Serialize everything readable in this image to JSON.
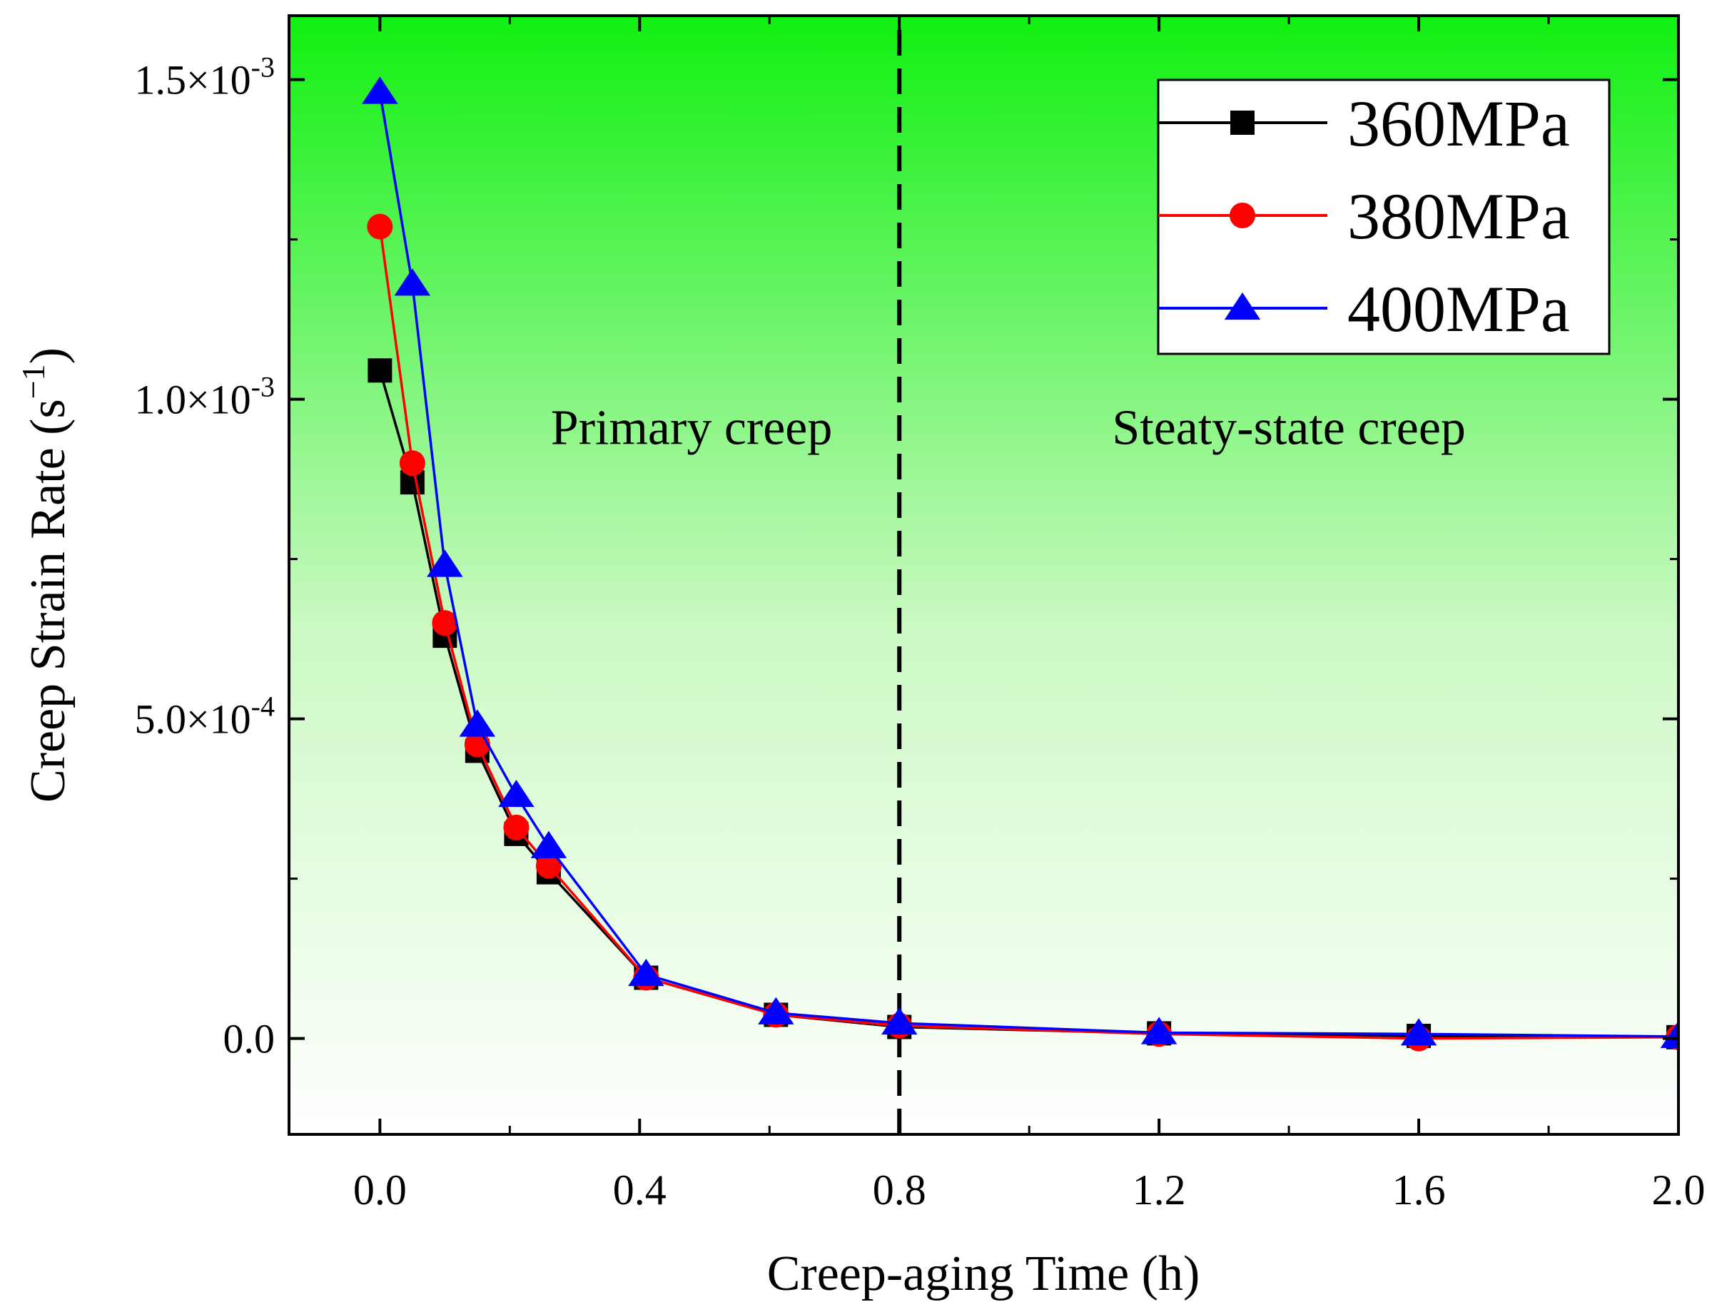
{
  "chart_data": {
    "type": "line",
    "title": "",
    "xlabel": "Creep-aging Time (h)",
    "ylabel": "Creep Strain Rate (s",
    "ylabel_exp": "−1",
    "ylabel_close": ")",
    "xlim": [
      -0.14,
      2.0
    ],
    "ylim": [
      -0.00015,
      0.0016
    ],
    "grid": false,
    "legend_position": "top-right",
    "background_gradient": [
      "#11f011",
      "#ffffff"
    ],
    "x_ticks": [
      {
        "value": 0.0,
        "label": "0.0"
      },
      {
        "value": 0.4,
        "label": "0.4"
      },
      {
        "value": 0.8,
        "label": "0.8"
      },
      {
        "value": 1.2,
        "label": "1.2"
      },
      {
        "value": 1.6,
        "label": "1.6"
      },
      {
        "value": 2.0,
        "label": "2.0"
      }
    ],
    "x_minor_ticks": [
      0.2,
      0.6,
      1.0,
      1.4,
      1.8
    ],
    "y_ticks": [
      {
        "value": 0.0,
        "mant": "0.0",
        "exp": ""
      },
      {
        "value": 0.0005,
        "mant": "5.0×10",
        "exp": "-4"
      },
      {
        "value": 0.001,
        "mant": "1.0×10",
        "exp": "-3"
      },
      {
        "value": 0.0015,
        "mant": "1.5×10",
        "exp": "-3"
      }
    ],
    "y_minor_ticks": [
      0.00025,
      0.00075,
      0.00125
    ],
    "x": [
      0.0,
      0.05,
      0.1,
      0.15,
      0.21,
      0.26,
      0.41,
      0.61,
      0.8,
      1.2,
      1.6,
      2.0
    ],
    "series": [
      {
        "name": "360MPa",
        "color": "#000000",
        "marker": "square",
        "values": [
          0.001045,
          0.00087,
          0.00063,
          0.00045,
          0.00032,
          0.00026,
          9.5e-05,
          3.7e-05,
          1.8e-05,
          8e-06,
          4e-06,
          2e-06
        ]
      },
      {
        "name": "380MPa",
        "color": "#ff0000",
        "marker": "circle",
        "values": [
          0.00127,
          0.0009,
          0.00065,
          0.00046,
          0.00033,
          0.00027,
          9.5e-05,
          3.7e-05,
          2e-05,
          7e-06,
          0.0,
          2e-06
        ]
      },
      {
        "name": "400MPa",
        "color": "#0000ff",
        "marker": "triangle",
        "values": [
          0.00148,
          0.00118,
          0.00074,
          0.00049,
          0.00038,
          0.0003,
          0.0001,
          4e-05,
          2.4e-05,
          9e-06,
          7e-06,
          3e-06
        ]
      }
    ],
    "vline": {
      "x": 0.8,
      "style": "dashed"
    },
    "annotations": [
      {
        "text": "Primary creep",
        "x": 0.48,
        "y": 0.00093
      },
      {
        "text": "Steaty-state creep",
        "x": 1.4,
        "y": 0.00093
      }
    ]
  }
}
